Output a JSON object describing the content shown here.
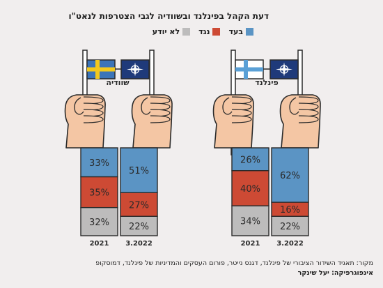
{
  "title": "דעת הקהל בפינלנד ובשוודיה לגבי הצטרפות לנאט\"ו",
  "legend": [
    {
      "label": "בעד",
      "color": "#5b94c4"
    },
    {
      "label": "נגד",
      "color": "#cd4a34"
    },
    {
      "label": "לא יודע",
      "color": "#bdbcbc"
    }
  ],
  "footer": {
    "source": "מקור: תאגיד השידור הציבורי של פינלנד, דגנס נייטר, פורום העסקים והמדיניות של פינלנד, דמוסקופ",
    "credit": "אינפוגרפיקה: יעל שינקר"
  },
  "chart_data": [
    {
      "type": "bar",
      "country_label": "שוודיה",
      "flag": "sweden-flag",
      "categories": [
        "2021",
        "3.2022"
      ],
      "series": [
        {
          "name": "בעד",
          "values": [
            33,
            51
          ],
          "labels": [
            "33%",
            "51%"
          ]
        },
        {
          "name": "נגד",
          "values": [
            35,
            27
          ],
          "labels": [
            "35%",
            "27%"
          ]
        },
        {
          "name": "לא יודע",
          "values": [
            32,
            22
          ],
          "labels": [
            "32%",
            "22%"
          ]
        }
      ]
    },
    {
      "type": "bar",
      "country_label": "פינלנד",
      "flag": "finland-flag",
      "categories": [
        "2021",
        "3.2022"
      ],
      "series": [
        {
          "name": "בעד",
          "values": [
            26,
            62
          ],
          "labels": [
            "26%",
            "62%"
          ]
        },
        {
          "name": "נגד",
          "values": [
            40,
            16
          ],
          "labels": [
            "40%",
            "16%"
          ]
        },
        {
          "name": "לא יודע",
          "values": [
            34,
            22
          ],
          "labels": [
            "34%",
            "22%"
          ]
        }
      ]
    }
  ],
  "colors": {
    "favor": "#5b94c4",
    "against": "#cd4a34",
    "unknown": "#bdbcbc",
    "skin": "#f4c6a4",
    "outline": "#2a2a2a",
    "nato_blue": "#1f3a7a",
    "sweden_blue": "#3b74b8",
    "sweden_yellow": "#f2c81c",
    "finland_blue": "#5aa0d6"
  }
}
